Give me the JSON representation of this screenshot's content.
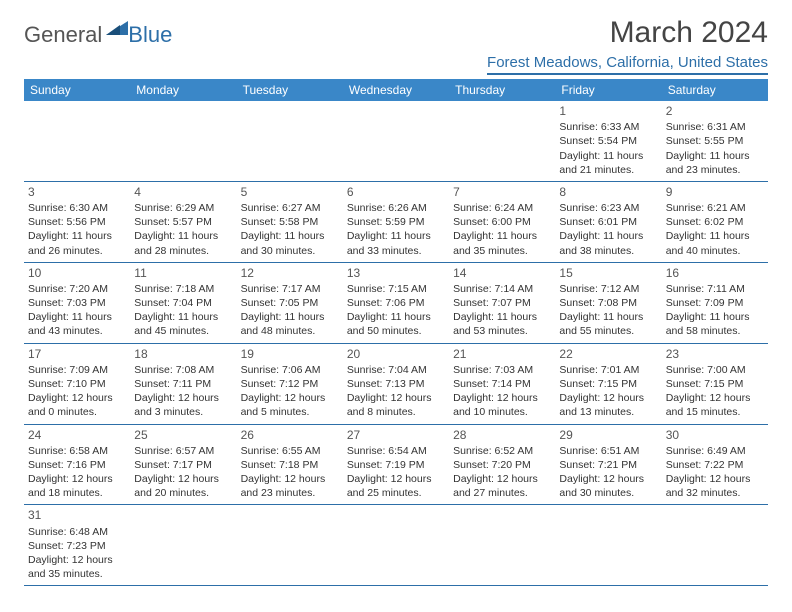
{
  "logo": {
    "general": "General",
    "blue": "Blue"
  },
  "title": "March 2024",
  "location": "Forest Meadows, California, United States",
  "colors": {
    "header_bg": "#3a87c8",
    "rule": "#2d6fa8",
    "text": "#333333",
    "title": "#444444"
  },
  "weekdays": [
    "Sunday",
    "Monday",
    "Tuesday",
    "Wednesday",
    "Thursday",
    "Friday",
    "Saturday"
  ],
  "weeks": [
    [
      null,
      null,
      null,
      null,
      null,
      {
        "n": "1",
        "sr": "Sunrise: 6:33 AM",
        "ss": "Sunset: 5:54 PM",
        "dl": "Daylight: 11 hours and 21 minutes."
      },
      {
        "n": "2",
        "sr": "Sunrise: 6:31 AM",
        "ss": "Sunset: 5:55 PM",
        "dl": "Daylight: 11 hours and 23 minutes."
      }
    ],
    [
      {
        "n": "3",
        "sr": "Sunrise: 6:30 AM",
        "ss": "Sunset: 5:56 PM",
        "dl": "Daylight: 11 hours and 26 minutes."
      },
      {
        "n": "4",
        "sr": "Sunrise: 6:29 AM",
        "ss": "Sunset: 5:57 PM",
        "dl": "Daylight: 11 hours and 28 minutes."
      },
      {
        "n": "5",
        "sr": "Sunrise: 6:27 AM",
        "ss": "Sunset: 5:58 PM",
        "dl": "Daylight: 11 hours and 30 minutes."
      },
      {
        "n": "6",
        "sr": "Sunrise: 6:26 AM",
        "ss": "Sunset: 5:59 PM",
        "dl": "Daylight: 11 hours and 33 minutes."
      },
      {
        "n": "7",
        "sr": "Sunrise: 6:24 AM",
        "ss": "Sunset: 6:00 PM",
        "dl": "Daylight: 11 hours and 35 minutes."
      },
      {
        "n": "8",
        "sr": "Sunrise: 6:23 AM",
        "ss": "Sunset: 6:01 PM",
        "dl": "Daylight: 11 hours and 38 minutes."
      },
      {
        "n": "9",
        "sr": "Sunrise: 6:21 AM",
        "ss": "Sunset: 6:02 PM",
        "dl": "Daylight: 11 hours and 40 minutes."
      }
    ],
    [
      {
        "n": "10",
        "sr": "Sunrise: 7:20 AM",
        "ss": "Sunset: 7:03 PM",
        "dl": "Daylight: 11 hours and 43 minutes."
      },
      {
        "n": "11",
        "sr": "Sunrise: 7:18 AM",
        "ss": "Sunset: 7:04 PM",
        "dl": "Daylight: 11 hours and 45 minutes."
      },
      {
        "n": "12",
        "sr": "Sunrise: 7:17 AM",
        "ss": "Sunset: 7:05 PM",
        "dl": "Daylight: 11 hours and 48 minutes."
      },
      {
        "n": "13",
        "sr": "Sunrise: 7:15 AM",
        "ss": "Sunset: 7:06 PM",
        "dl": "Daylight: 11 hours and 50 minutes."
      },
      {
        "n": "14",
        "sr": "Sunrise: 7:14 AM",
        "ss": "Sunset: 7:07 PM",
        "dl": "Daylight: 11 hours and 53 minutes."
      },
      {
        "n": "15",
        "sr": "Sunrise: 7:12 AM",
        "ss": "Sunset: 7:08 PM",
        "dl": "Daylight: 11 hours and 55 minutes."
      },
      {
        "n": "16",
        "sr": "Sunrise: 7:11 AM",
        "ss": "Sunset: 7:09 PM",
        "dl": "Daylight: 11 hours and 58 minutes."
      }
    ],
    [
      {
        "n": "17",
        "sr": "Sunrise: 7:09 AM",
        "ss": "Sunset: 7:10 PM",
        "dl": "Daylight: 12 hours and 0 minutes."
      },
      {
        "n": "18",
        "sr": "Sunrise: 7:08 AM",
        "ss": "Sunset: 7:11 PM",
        "dl": "Daylight: 12 hours and 3 minutes."
      },
      {
        "n": "19",
        "sr": "Sunrise: 7:06 AM",
        "ss": "Sunset: 7:12 PM",
        "dl": "Daylight: 12 hours and 5 minutes."
      },
      {
        "n": "20",
        "sr": "Sunrise: 7:04 AM",
        "ss": "Sunset: 7:13 PM",
        "dl": "Daylight: 12 hours and 8 minutes."
      },
      {
        "n": "21",
        "sr": "Sunrise: 7:03 AM",
        "ss": "Sunset: 7:14 PM",
        "dl": "Daylight: 12 hours and 10 minutes."
      },
      {
        "n": "22",
        "sr": "Sunrise: 7:01 AM",
        "ss": "Sunset: 7:15 PM",
        "dl": "Daylight: 12 hours and 13 minutes."
      },
      {
        "n": "23",
        "sr": "Sunrise: 7:00 AM",
        "ss": "Sunset: 7:15 PM",
        "dl": "Daylight: 12 hours and 15 minutes."
      }
    ],
    [
      {
        "n": "24",
        "sr": "Sunrise: 6:58 AM",
        "ss": "Sunset: 7:16 PM",
        "dl": "Daylight: 12 hours and 18 minutes."
      },
      {
        "n": "25",
        "sr": "Sunrise: 6:57 AM",
        "ss": "Sunset: 7:17 PM",
        "dl": "Daylight: 12 hours and 20 minutes."
      },
      {
        "n": "26",
        "sr": "Sunrise: 6:55 AM",
        "ss": "Sunset: 7:18 PM",
        "dl": "Daylight: 12 hours and 23 minutes."
      },
      {
        "n": "27",
        "sr": "Sunrise: 6:54 AM",
        "ss": "Sunset: 7:19 PM",
        "dl": "Daylight: 12 hours and 25 minutes."
      },
      {
        "n": "28",
        "sr": "Sunrise: 6:52 AM",
        "ss": "Sunset: 7:20 PM",
        "dl": "Daylight: 12 hours and 27 minutes."
      },
      {
        "n": "29",
        "sr": "Sunrise: 6:51 AM",
        "ss": "Sunset: 7:21 PM",
        "dl": "Daylight: 12 hours and 30 minutes."
      },
      {
        "n": "30",
        "sr": "Sunrise: 6:49 AM",
        "ss": "Sunset: 7:22 PM",
        "dl": "Daylight: 12 hours and 32 minutes."
      }
    ],
    [
      {
        "n": "31",
        "sr": "Sunrise: 6:48 AM",
        "ss": "Sunset: 7:23 PM",
        "dl": "Daylight: 12 hours and 35 minutes."
      },
      null,
      null,
      null,
      null,
      null,
      null
    ]
  ]
}
